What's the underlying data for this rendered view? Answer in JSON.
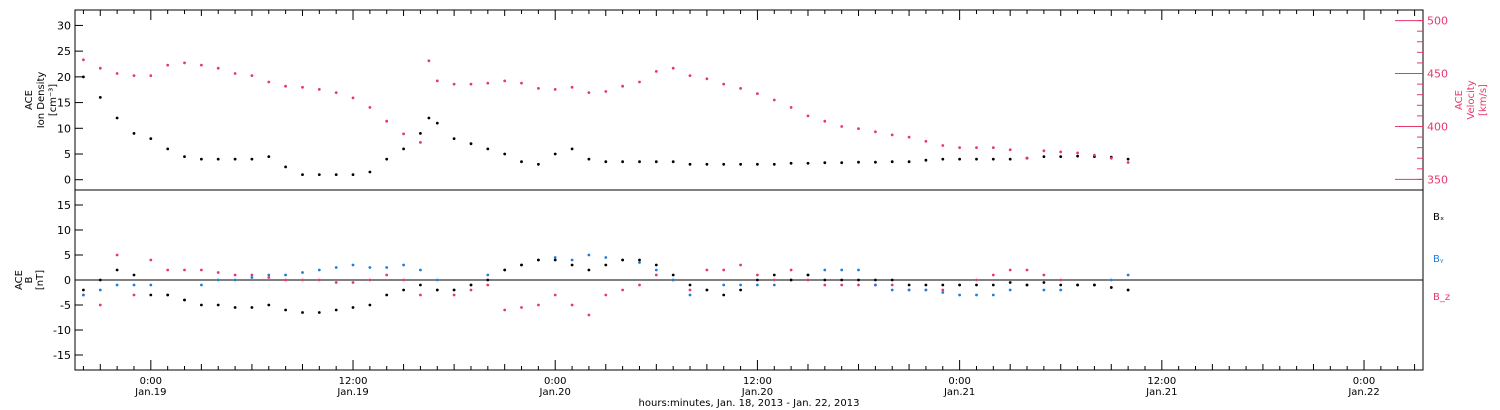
{
  "chart_data": [
    {
      "type": "scatter",
      "panel": "top",
      "ylabel_left": [
        "ACE",
        "Ion Density",
        "[cm⁻³]"
      ],
      "ylabel_right": [
        "ACE",
        "Velocity",
        "[km/s]"
      ],
      "ylim_left": [
        -2,
        33
      ],
      "yticks_left": [
        0,
        5,
        10,
        15,
        20,
        25,
        30
      ],
      "ylim_right": [
        340,
        510
      ],
      "yticks_right": [
        350,
        400,
        450,
        500
      ],
      "series": [
        {
          "color": "#000000",
          "axis": "left",
          "x": [
            -4,
            -3,
            -2,
            -1,
            0,
            1,
            2,
            3,
            4,
            5,
            6,
            7,
            8,
            9,
            10,
            11,
            12,
            13,
            14,
            15,
            16,
            16.5,
            17,
            18,
            19,
            20,
            21,
            22,
            23,
            24,
            25,
            26,
            27,
            28,
            29,
            30,
            31,
            32,
            33,
            34,
            35,
            36,
            37,
            38,
            39,
            40,
            41,
            42,
            43,
            44,
            45,
            46,
            47,
            48,
            49,
            50,
            51,
            52,
            53,
            54,
            55,
            56,
            57,
            58
          ],
          "values": [
            20,
            16,
            12,
            9,
            8,
            6,
            4.5,
            4,
            4,
            4,
            4,
            4.5,
            2.5,
            1,
            1,
            1,
            1,
            1.5,
            4,
            6,
            9,
            12,
            11,
            8,
            7,
            6,
            5,
            3.5,
            3,
            5,
            6,
            4,
            3.5,
            3.5,
            3.5,
            3.5,
            3.5,
            3,
            3,
            3,
            3,
            3,
            3,
            3.2,
            3.2,
            3.3,
            3.3,
            3.4,
            3.4,
            3.5,
            3.5,
            3.8,
            4,
            4,
            4,
            4,
            4,
            4.2,
            4.5,
            4.5,
            4.6,
            4.5,
            4.4,
            4
          ]
        },
        {
          "color": "#e8386b",
          "axis": "right",
          "x": [
            -4,
            -3,
            -2,
            -1,
            0,
            1,
            2,
            3,
            4,
            5,
            6,
            7,
            8,
            9,
            10,
            11,
            12,
            13,
            14,
            15,
            16,
            16.5,
            17,
            18,
            19,
            20,
            21,
            22,
            23,
            24,
            25,
            26,
            27,
            28,
            29,
            30,
            31,
            32,
            33,
            34,
            35,
            36,
            37,
            38,
            39,
            40,
            41,
            42,
            43,
            44,
            45,
            46,
            47,
            48,
            49,
            50,
            51,
            52,
            53,
            54,
            55,
            56,
            57,
            58
          ],
          "values": [
            463,
            455,
            450,
            448,
            448,
            458,
            460,
            458,
            455,
            450,
            448,
            442,
            438,
            437,
            435,
            432,
            427,
            418,
            405,
            393,
            385,
            462,
            443,
            440,
            440,
            441,
            443,
            441,
            436,
            435,
            437,
            432,
            433,
            438,
            442,
            452,
            455,
            448,
            445,
            440,
            436,
            431,
            425,
            418,
            410,
            405,
            400,
            398,
            395,
            392,
            390,
            386,
            382,
            380,
            380,
            380,
            378,
            370,
            377,
            376,
            375,
            373,
            370,
            366
          ]
        }
      ]
    },
    {
      "type": "scatter",
      "panel": "bottom",
      "ylabel": [
        "ACE",
        "B",
        "[nT]"
      ],
      "ylim": [
        -18,
        18
      ],
      "yticks": [
        -15,
        -10,
        -5,
        0,
        5,
        10,
        15
      ],
      "legend": [
        "Bₓ",
        "Bᵧ",
        "B_z"
      ],
      "series": [
        {
          "name": "Bₓ",
          "color": "#000000",
          "x": [
            -4,
            -3,
            -2,
            -1,
            0,
            1,
            2,
            3,
            4,
            5,
            6,
            7,
            8,
            9,
            10,
            11,
            12,
            13,
            14,
            15,
            16,
            17,
            18,
            19,
            20,
            21,
            22,
            23,
            24,
            25,
            26,
            27,
            28,
            29,
            30,
            31,
            32,
            33,
            34,
            35,
            36,
            37,
            38,
            39,
            40,
            41,
            42,
            43,
            44,
            45,
            46,
            47,
            48,
            49,
            50,
            51,
            52,
            53,
            54,
            55,
            56,
            57,
            58
          ],
          "values": [
            -2,
            0,
            2,
            1,
            -3,
            -3,
            -4,
            -5,
            -5,
            -5.5,
            -5.5,
            -5,
            -6,
            -6.5,
            -6.5,
            -6,
            -5.5,
            -5,
            -3,
            -2,
            -1,
            -2,
            -2,
            -1,
            0,
            2,
            3,
            4,
            4,
            3,
            2,
            3,
            4,
            4,
            3,
            1,
            -1,
            -2,
            -3,
            -2,
            0,
            1,
            0,
            1,
            0,
            0,
            0,
            0,
            0,
            -1,
            -1,
            -1,
            -1,
            -1,
            -1,
            -0.5,
            -1,
            -0.5,
            -1,
            -1,
            -1,
            -1.5,
            -2
          ]
        },
        {
          "name": "Bᵧ",
          "color": "#1e7fd8",
          "x": [
            -4,
            -3,
            -2,
            -1,
            0,
            1,
            2,
            3,
            4,
            5,
            6,
            7,
            8,
            9,
            10,
            11,
            12,
            13,
            14,
            15,
            16,
            17,
            18,
            19,
            20,
            21,
            22,
            23,
            24,
            25,
            26,
            27,
            28,
            29,
            30,
            31,
            32,
            33,
            34,
            35,
            36,
            37,
            38,
            39,
            40,
            41,
            42,
            43,
            44,
            45,
            46,
            47,
            48,
            49,
            50,
            51,
            52,
            53,
            54,
            55,
            56,
            57,
            58
          ],
          "values": [
            -3,
            -2,
            -1,
            -1,
            -1,
            -3,
            -4,
            -1,
            0,
            0,
            0.5,
            1,
            1,
            1.5,
            2,
            2.5,
            3,
            2.5,
            2.5,
            3,
            2,
            0,
            -2,
            -1,
            1,
            2,
            3,
            4,
            4.5,
            4,
            5,
            4.5,
            4,
            3.5,
            2,
            0,
            -3,
            -2,
            -1,
            -1,
            -1,
            -1,
            0,
            1,
            2,
            2,
            2,
            -1,
            -2,
            -2,
            -2,
            -2.5,
            -3,
            -3,
            -3,
            -2,
            -1,
            -2,
            -2,
            -1,
            -1,
            0,
            1
          ]
        },
        {
          "name": "B_z",
          "color": "#e8386b",
          "x": [
            -4,
            -3,
            -2,
            -1,
            0,
            1,
            2,
            3,
            4,
            5,
            6,
            7,
            8,
            9,
            10,
            11,
            12,
            13,
            14,
            15,
            16,
            17,
            18,
            19,
            20,
            21,
            22,
            23,
            24,
            25,
            26,
            27,
            28,
            29,
            30,
            31,
            32,
            33,
            34,
            35,
            36,
            37,
            38,
            39,
            40,
            41,
            42,
            43,
            44,
            45,
            46,
            47,
            48,
            49,
            50,
            51,
            52,
            53,
            54,
            55,
            56,
            57,
            58
          ],
          "values": [
            -3,
            -5,
            5,
            -3,
            4,
            2,
            2,
            2,
            1.5,
            1,
            1,
            0.5,
            0,
            0,
            0,
            -0.5,
            -0.5,
            0,
            1,
            0,
            -3,
            -2,
            -3,
            -2,
            -1,
            -6,
            -5.5,
            -5,
            -3,
            -5,
            -7,
            -3,
            -2,
            -1,
            1,
            0,
            -2,
            2,
            2,
            3,
            1,
            0,
            2,
            0,
            -1,
            -1,
            -1,
            -1,
            -1,
            -2,
            -2,
            -2,
            -1,
            0,
            1,
            2,
            2,
            1,
            0,
            -1,
            -1,
            -1.5,
            -2
          ]
        }
      ]
    }
  ],
  "xaxis": {
    "range_hours": [
      -4.5,
      75.5
    ],
    "ticks": [
      {
        "hours": 0,
        "time": "0:00",
        "date": "Jan.19"
      },
      {
        "hours": 12,
        "time": "12:00",
        "date": "Jan.19"
      },
      {
        "hours": 24,
        "time": "0:00",
        "date": "Jan.20"
      },
      {
        "hours": 36,
        "time": "12:00",
        "date": "Jan.20"
      },
      {
        "hours": 48,
        "time": "0:00",
        "date": "Jan.21"
      },
      {
        "hours": 60,
        "time": "12:00",
        "date": "Jan.21"
      },
      {
        "hours": 72,
        "time": "0:00",
        "date": "Jan.22"
      }
    ],
    "label": "hours:minutes, Jan. 18, 2013 - Jan. 22, 2013"
  },
  "colors": {
    "black": "#000000",
    "blue": "#1e7fd8",
    "pink": "#e8386b",
    "axis": "#000000"
  }
}
